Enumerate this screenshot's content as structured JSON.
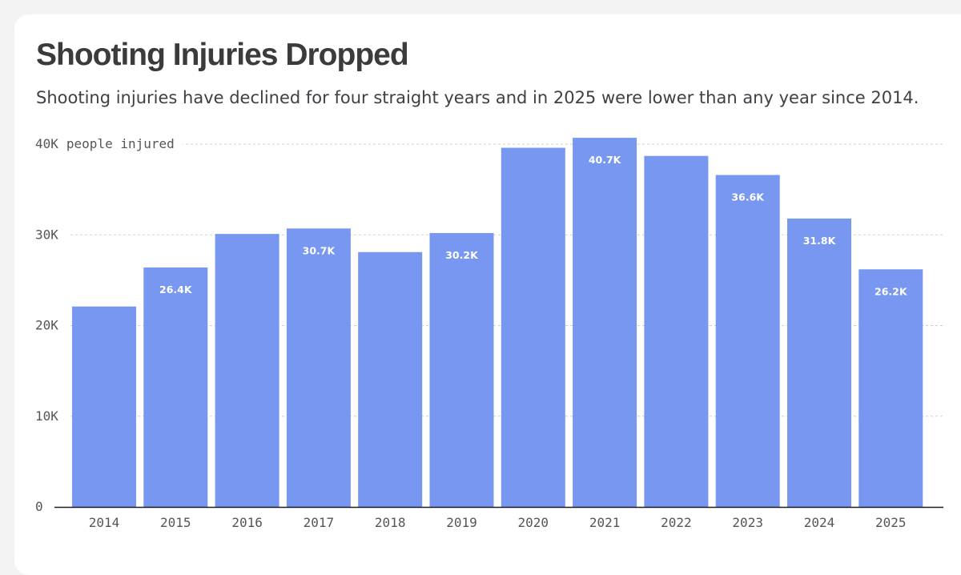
{
  "page": {
    "title": "Shooting Injuries Dropped",
    "subtitle": "Shooting injuries have declined for four straight years and in 2025 were lower than any year since 2014."
  },
  "chart_data": {
    "type": "bar",
    "categories": [
      "2014",
      "2015",
      "2016",
      "2017",
      "2018",
      "2019",
      "2020",
      "2021",
      "2022",
      "2023",
      "2024",
      "2025"
    ],
    "values": [
      22100,
      26400,
      30100,
      30700,
      28100,
      30200,
      39600,
      40700,
      38700,
      36600,
      31800,
      26200
    ],
    "data_labels": [
      "",
      "26.4K",
      "",
      "30.7K",
      "",
      "30.2K",
      "",
      "40.7K",
      "",
      "36.6K",
      "31.8K",
      "26.2K"
    ],
    "y_ticks": [
      0,
      10000,
      20000,
      30000,
      40000
    ],
    "y_tick_labels": [
      "0",
      "10K",
      "20K",
      "30K",
      "40K"
    ],
    "ylabel": "people injured",
    "ylim": [
      0,
      40000
    ],
    "grid": true,
    "colors": {
      "bar": "#7797f0",
      "data_label": "#ffffff",
      "grid": "#cfcfd3",
      "axis": "#1f1f22",
      "tick_label": "#55555a"
    }
  }
}
